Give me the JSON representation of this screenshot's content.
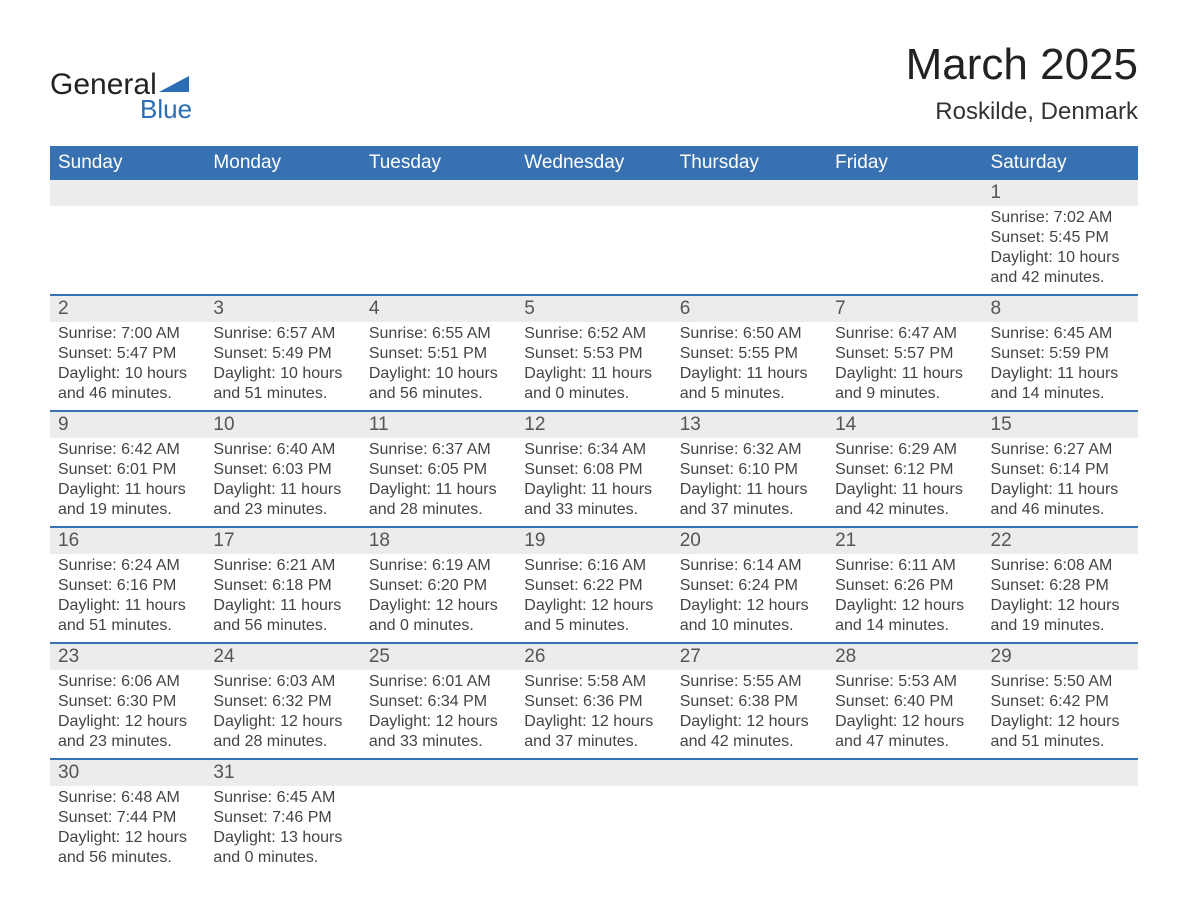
{
  "logo": {
    "text_main": "General",
    "text_sub": "Blue",
    "tri_color": "#2a6db4"
  },
  "title": {
    "main": "March 2025",
    "sub": "Roskilde, Denmark"
  },
  "colors": {
    "header_bg": "#3871b1",
    "header_text": "#ffffff",
    "daynum_bg": "#ececec",
    "row_border": "#3871b1",
    "body_text": "#444444",
    "background": "#ffffff"
  },
  "typography": {
    "title_fontsize": 44,
    "subtitle_fontsize": 24,
    "header_fontsize": 19,
    "daynum_fontsize": 19,
    "body_fontsize": 16,
    "font_family": "Arial"
  },
  "calendar": {
    "type": "table",
    "columns": [
      "Sunday",
      "Monday",
      "Tuesday",
      "Wednesday",
      "Thursday",
      "Friday",
      "Saturday"
    ],
    "weeks": [
      [
        null,
        null,
        null,
        null,
        null,
        null,
        {
          "d": "1",
          "sunrise": "Sunrise: 7:02 AM",
          "sunset": "Sunset: 5:45 PM",
          "day1": "Daylight: 10 hours",
          "day2": "and 42 minutes."
        }
      ],
      [
        {
          "d": "2",
          "sunrise": "Sunrise: 7:00 AM",
          "sunset": "Sunset: 5:47 PM",
          "day1": "Daylight: 10 hours",
          "day2": "and 46 minutes."
        },
        {
          "d": "3",
          "sunrise": "Sunrise: 6:57 AM",
          "sunset": "Sunset: 5:49 PM",
          "day1": "Daylight: 10 hours",
          "day2": "and 51 minutes."
        },
        {
          "d": "4",
          "sunrise": "Sunrise: 6:55 AM",
          "sunset": "Sunset: 5:51 PM",
          "day1": "Daylight: 10 hours",
          "day2": "and 56 minutes."
        },
        {
          "d": "5",
          "sunrise": "Sunrise: 6:52 AM",
          "sunset": "Sunset: 5:53 PM",
          "day1": "Daylight: 11 hours",
          "day2": "and 0 minutes."
        },
        {
          "d": "6",
          "sunrise": "Sunrise: 6:50 AM",
          "sunset": "Sunset: 5:55 PM",
          "day1": "Daylight: 11 hours",
          "day2": "and 5 minutes."
        },
        {
          "d": "7",
          "sunrise": "Sunrise: 6:47 AM",
          "sunset": "Sunset: 5:57 PM",
          "day1": "Daylight: 11 hours",
          "day2": "and 9 minutes."
        },
        {
          "d": "8",
          "sunrise": "Sunrise: 6:45 AM",
          "sunset": "Sunset: 5:59 PM",
          "day1": "Daylight: 11 hours",
          "day2": "and 14 minutes."
        }
      ],
      [
        {
          "d": "9",
          "sunrise": "Sunrise: 6:42 AM",
          "sunset": "Sunset: 6:01 PM",
          "day1": "Daylight: 11 hours",
          "day2": "and 19 minutes."
        },
        {
          "d": "10",
          "sunrise": "Sunrise: 6:40 AM",
          "sunset": "Sunset: 6:03 PM",
          "day1": "Daylight: 11 hours",
          "day2": "and 23 minutes."
        },
        {
          "d": "11",
          "sunrise": "Sunrise: 6:37 AM",
          "sunset": "Sunset: 6:05 PM",
          "day1": "Daylight: 11 hours",
          "day2": "and 28 minutes."
        },
        {
          "d": "12",
          "sunrise": "Sunrise: 6:34 AM",
          "sunset": "Sunset: 6:08 PM",
          "day1": "Daylight: 11 hours",
          "day2": "and 33 minutes."
        },
        {
          "d": "13",
          "sunrise": "Sunrise: 6:32 AM",
          "sunset": "Sunset: 6:10 PM",
          "day1": "Daylight: 11 hours",
          "day2": "and 37 minutes."
        },
        {
          "d": "14",
          "sunrise": "Sunrise: 6:29 AM",
          "sunset": "Sunset: 6:12 PM",
          "day1": "Daylight: 11 hours",
          "day2": "and 42 minutes."
        },
        {
          "d": "15",
          "sunrise": "Sunrise: 6:27 AM",
          "sunset": "Sunset: 6:14 PM",
          "day1": "Daylight: 11 hours",
          "day2": "and 46 minutes."
        }
      ],
      [
        {
          "d": "16",
          "sunrise": "Sunrise: 6:24 AM",
          "sunset": "Sunset: 6:16 PM",
          "day1": "Daylight: 11 hours",
          "day2": "and 51 minutes."
        },
        {
          "d": "17",
          "sunrise": "Sunrise: 6:21 AM",
          "sunset": "Sunset: 6:18 PM",
          "day1": "Daylight: 11 hours",
          "day2": "and 56 minutes."
        },
        {
          "d": "18",
          "sunrise": "Sunrise: 6:19 AM",
          "sunset": "Sunset: 6:20 PM",
          "day1": "Daylight: 12 hours",
          "day2": "and 0 minutes."
        },
        {
          "d": "19",
          "sunrise": "Sunrise: 6:16 AM",
          "sunset": "Sunset: 6:22 PM",
          "day1": "Daylight: 12 hours",
          "day2": "and 5 minutes."
        },
        {
          "d": "20",
          "sunrise": "Sunrise: 6:14 AM",
          "sunset": "Sunset: 6:24 PM",
          "day1": "Daylight: 12 hours",
          "day2": "and 10 minutes."
        },
        {
          "d": "21",
          "sunrise": "Sunrise: 6:11 AM",
          "sunset": "Sunset: 6:26 PM",
          "day1": "Daylight: 12 hours",
          "day2": "and 14 minutes."
        },
        {
          "d": "22",
          "sunrise": "Sunrise: 6:08 AM",
          "sunset": "Sunset: 6:28 PM",
          "day1": "Daylight: 12 hours",
          "day2": "and 19 minutes."
        }
      ],
      [
        {
          "d": "23",
          "sunrise": "Sunrise: 6:06 AM",
          "sunset": "Sunset: 6:30 PM",
          "day1": "Daylight: 12 hours",
          "day2": "and 23 minutes."
        },
        {
          "d": "24",
          "sunrise": "Sunrise: 6:03 AM",
          "sunset": "Sunset: 6:32 PM",
          "day1": "Daylight: 12 hours",
          "day2": "and 28 minutes."
        },
        {
          "d": "25",
          "sunrise": "Sunrise: 6:01 AM",
          "sunset": "Sunset: 6:34 PM",
          "day1": "Daylight: 12 hours",
          "day2": "and 33 minutes."
        },
        {
          "d": "26",
          "sunrise": "Sunrise: 5:58 AM",
          "sunset": "Sunset: 6:36 PM",
          "day1": "Daylight: 12 hours",
          "day2": "and 37 minutes."
        },
        {
          "d": "27",
          "sunrise": "Sunrise: 5:55 AM",
          "sunset": "Sunset: 6:38 PM",
          "day1": "Daylight: 12 hours",
          "day2": "and 42 minutes."
        },
        {
          "d": "28",
          "sunrise": "Sunrise: 5:53 AM",
          "sunset": "Sunset: 6:40 PM",
          "day1": "Daylight: 12 hours",
          "day2": "and 47 minutes."
        },
        {
          "d": "29",
          "sunrise": "Sunrise: 5:50 AM",
          "sunset": "Sunset: 6:42 PM",
          "day1": "Daylight: 12 hours",
          "day2": "and 51 minutes."
        }
      ],
      [
        {
          "d": "30",
          "sunrise": "Sunrise: 6:48 AM",
          "sunset": "Sunset: 7:44 PM",
          "day1": "Daylight: 12 hours",
          "day2": "and 56 minutes."
        },
        {
          "d": "31",
          "sunrise": "Sunrise: 6:45 AM",
          "sunset": "Sunset: 7:46 PM",
          "day1": "Daylight: 13 hours",
          "day2": "and 0 minutes."
        },
        null,
        null,
        null,
        null,
        null
      ]
    ]
  }
}
